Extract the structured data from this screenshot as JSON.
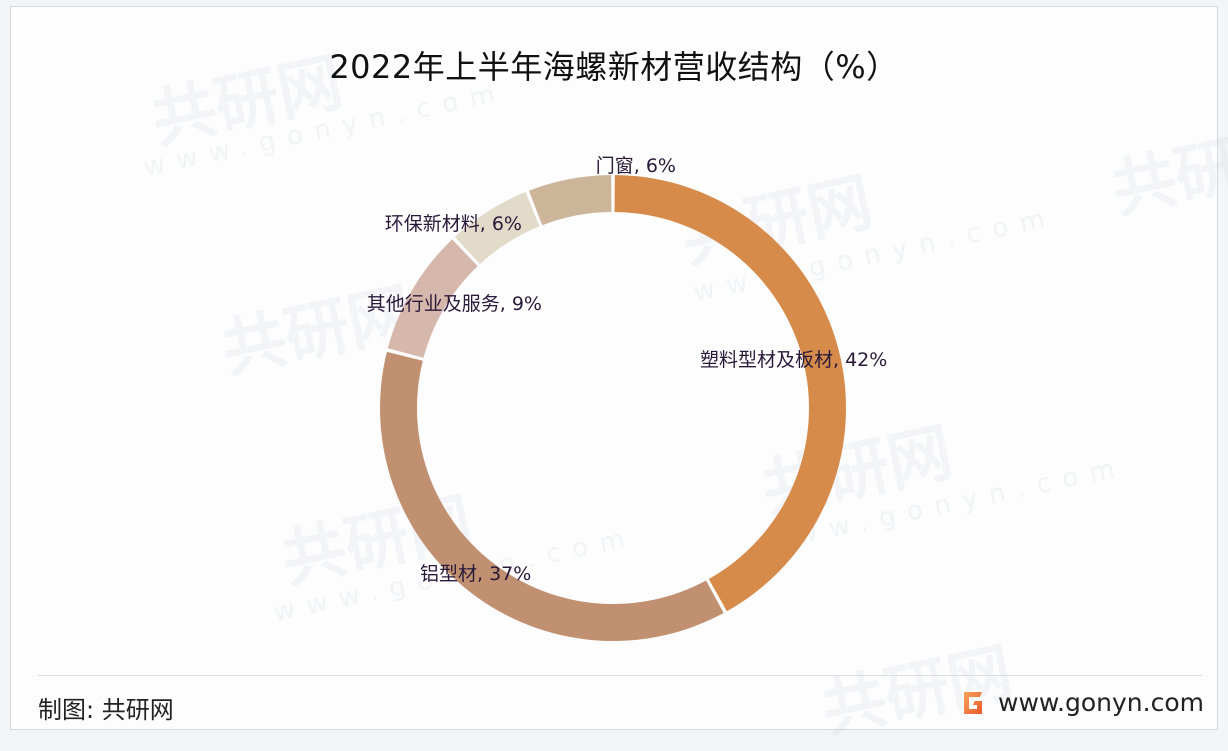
{
  "title": "2022年上半年海螺新材营收结构（%）",
  "footer": {
    "source_label": "制图: 共研网",
    "website": "www.gonyn.com",
    "logo_icon": "gonyn-logo-icon"
  },
  "watermark": {
    "text": "共研网",
    "url_text": "www.gonyn.com"
  },
  "colors": {
    "plastic_profiles": "#D68B4A",
    "aluminum_profiles": "#C09070",
    "other_services": "#D5B7AC",
    "eco_materials": "#E3DBC9",
    "doors_windows": "#CDB59A"
  },
  "chart_data": {
    "type": "pie",
    "subtype": "donut",
    "title": "2022年上半年海螺新材营收结构（%）",
    "unit": "%",
    "categories": [
      "塑料型材及板材",
      "铝型材",
      "其他行业及服务",
      "环保新材料",
      "门窗"
    ],
    "values": [
      42,
      37,
      9,
      6,
      6
    ],
    "colors": [
      "#D68B4A",
      "#C09070",
      "#D5B7AC",
      "#E3DBC9",
      "#CDB59A"
    ],
    "labels": [
      "塑料型材及板材, 42%",
      "铝型材, 37%",
      "其他行业及服务, 9%",
      "环保新材料, 6%",
      "门窗, 6%"
    ],
    "start_angle": "12 o'clock",
    "direction": "clockwise",
    "legend": "none (data labels)"
  }
}
